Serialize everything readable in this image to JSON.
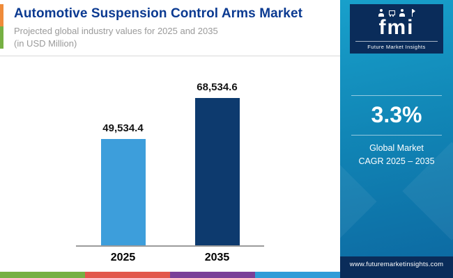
{
  "header": {
    "title": "Automotive Suspension Control Arms Market",
    "subtitle_line1": "Projected global industry values for 2025 and 2035",
    "subtitle_line2": "(in USD Million)"
  },
  "chart_data": {
    "type": "bar",
    "title": "Automotive Suspension Control Arms Market",
    "subtitle": "Projected global industry values for 2025 and 2035 (in USD Million)",
    "categories": [
      "2025",
      "2035"
    ],
    "values": [
      49534.4,
      68534.6
    ],
    "value_labels": [
      "49,534.4",
      "68,534.6"
    ],
    "bar_colors": [
      "#3d9edb",
      "#0d3a6e"
    ],
    "xlabel": "",
    "ylabel": "USD Million",
    "ylim": [
      0,
      70000
    ],
    "grid": false,
    "legend": "none"
  },
  "sidebar": {
    "logo_text": "fmi",
    "logo_tagline": "Future Market Insights",
    "cagr_value": "3.3%",
    "cagr_label_line1": "Global Market",
    "cagr_label_line2": "CAGR 2025 – 2035",
    "footer_url": "www.futuremarketinsights.com"
  },
  "colors": {
    "title": "#0b3a91",
    "bar_2025": "#3d9edb",
    "bar_2035": "#0d3a6e",
    "sidebar_top": "#18a0cb",
    "sidebar_bottom": "#0c67a0",
    "logo_navy": "#0a2c5a",
    "strip": [
      "#76b043",
      "#e2574c",
      "#7a3f98",
      "#2f9cd8",
      "#0a2c5a"
    ]
  }
}
